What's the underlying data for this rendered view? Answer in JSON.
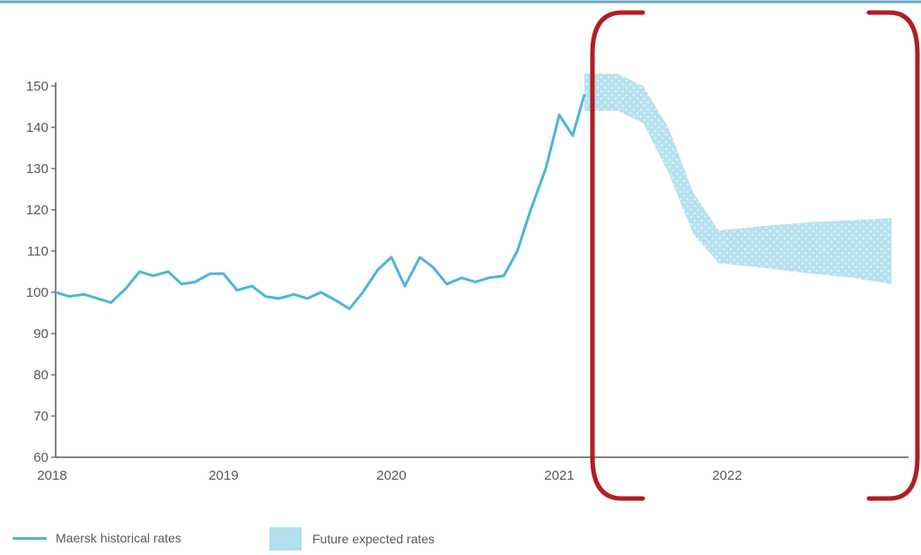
{
  "chart_data": {
    "type": "line",
    "title": "",
    "xlabel": "",
    "ylabel": "",
    "xlim": [
      2018,
      2023
    ],
    "ylim": [
      60,
      150
    ],
    "y_ticks": [
      60,
      70,
      80,
      90,
      100,
      110,
      120,
      130,
      140,
      150
    ],
    "x_ticks": [
      "2018",
      "2019",
      "2020",
      "2021",
      "2022"
    ],
    "grid": false,
    "legend_position": "bottom-left",
    "colors": {
      "historical": "#4fb6d6",
      "forecast_band": "#a9dcec",
      "highlight_frame": "#b01e23"
    },
    "series": [
      {
        "name": "Maersk historical rates",
        "x": [
          2018.0,
          2018.08,
          2018.17,
          2018.25,
          2018.33,
          2018.42,
          2018.5,
          2018.58,
          2018.67,
          2018.75,
          2018.83,
          2018.92,
          2019.0,
          2019.08,
          2019.17,
          2019.25,
          2019.33,
          2019.42,
          2019.5,
          2019.58,
          2019.67,
          2019.75,
          2019.83,
          2019.92,
          2020.0,
          2020.08,
          2020.17,
          2020.25,
          2020.33,
          2020.42,
          2020.5,
          2020.58,
          2020.67,
          2020.75,
          2020.83,
          2020.92,
          2021.0,
          2021.08,
          2021.15
        ],
        "y": [
          100,
          99,
          99.5,
          98.5,
          97.5,
          101,
          105,
          104,
          105,
          102,
          102.5,
          104.5,
          104.5,
          100.5,
          101.5,
          99,
          98.5,
          99.5,
          98.5,
          100,
          98,
          96,
          100,
          105.5,
          108.5,
          101.5,
          108.5,
          106,
          102,
          103.5,
          102.5,
          103.5,
          104,
          110,
          120,
          130,
          143,
          138,
          148
        ]
      },
      {
        "name": "Future expected rates",
        "type": "area-band",
        "x": [
          2021.15,
          2021.35,
          2021.5,
          2021.65,
          2021.8,
          2021.95,
          2022.2,
          2022.5,
          2022.75,
          2022.98
        ],
        "upper": [
          153,
          153,
          150,
          140,
          124,
          115,
          116,
          117,
          117.5,
          118
        ],
        "lower": [
          144,
          144,
          141,
          129,
          114,
          107,
          106,
          104.5,
          103.5,
          102
        ]
      }
    ]
  }
}
